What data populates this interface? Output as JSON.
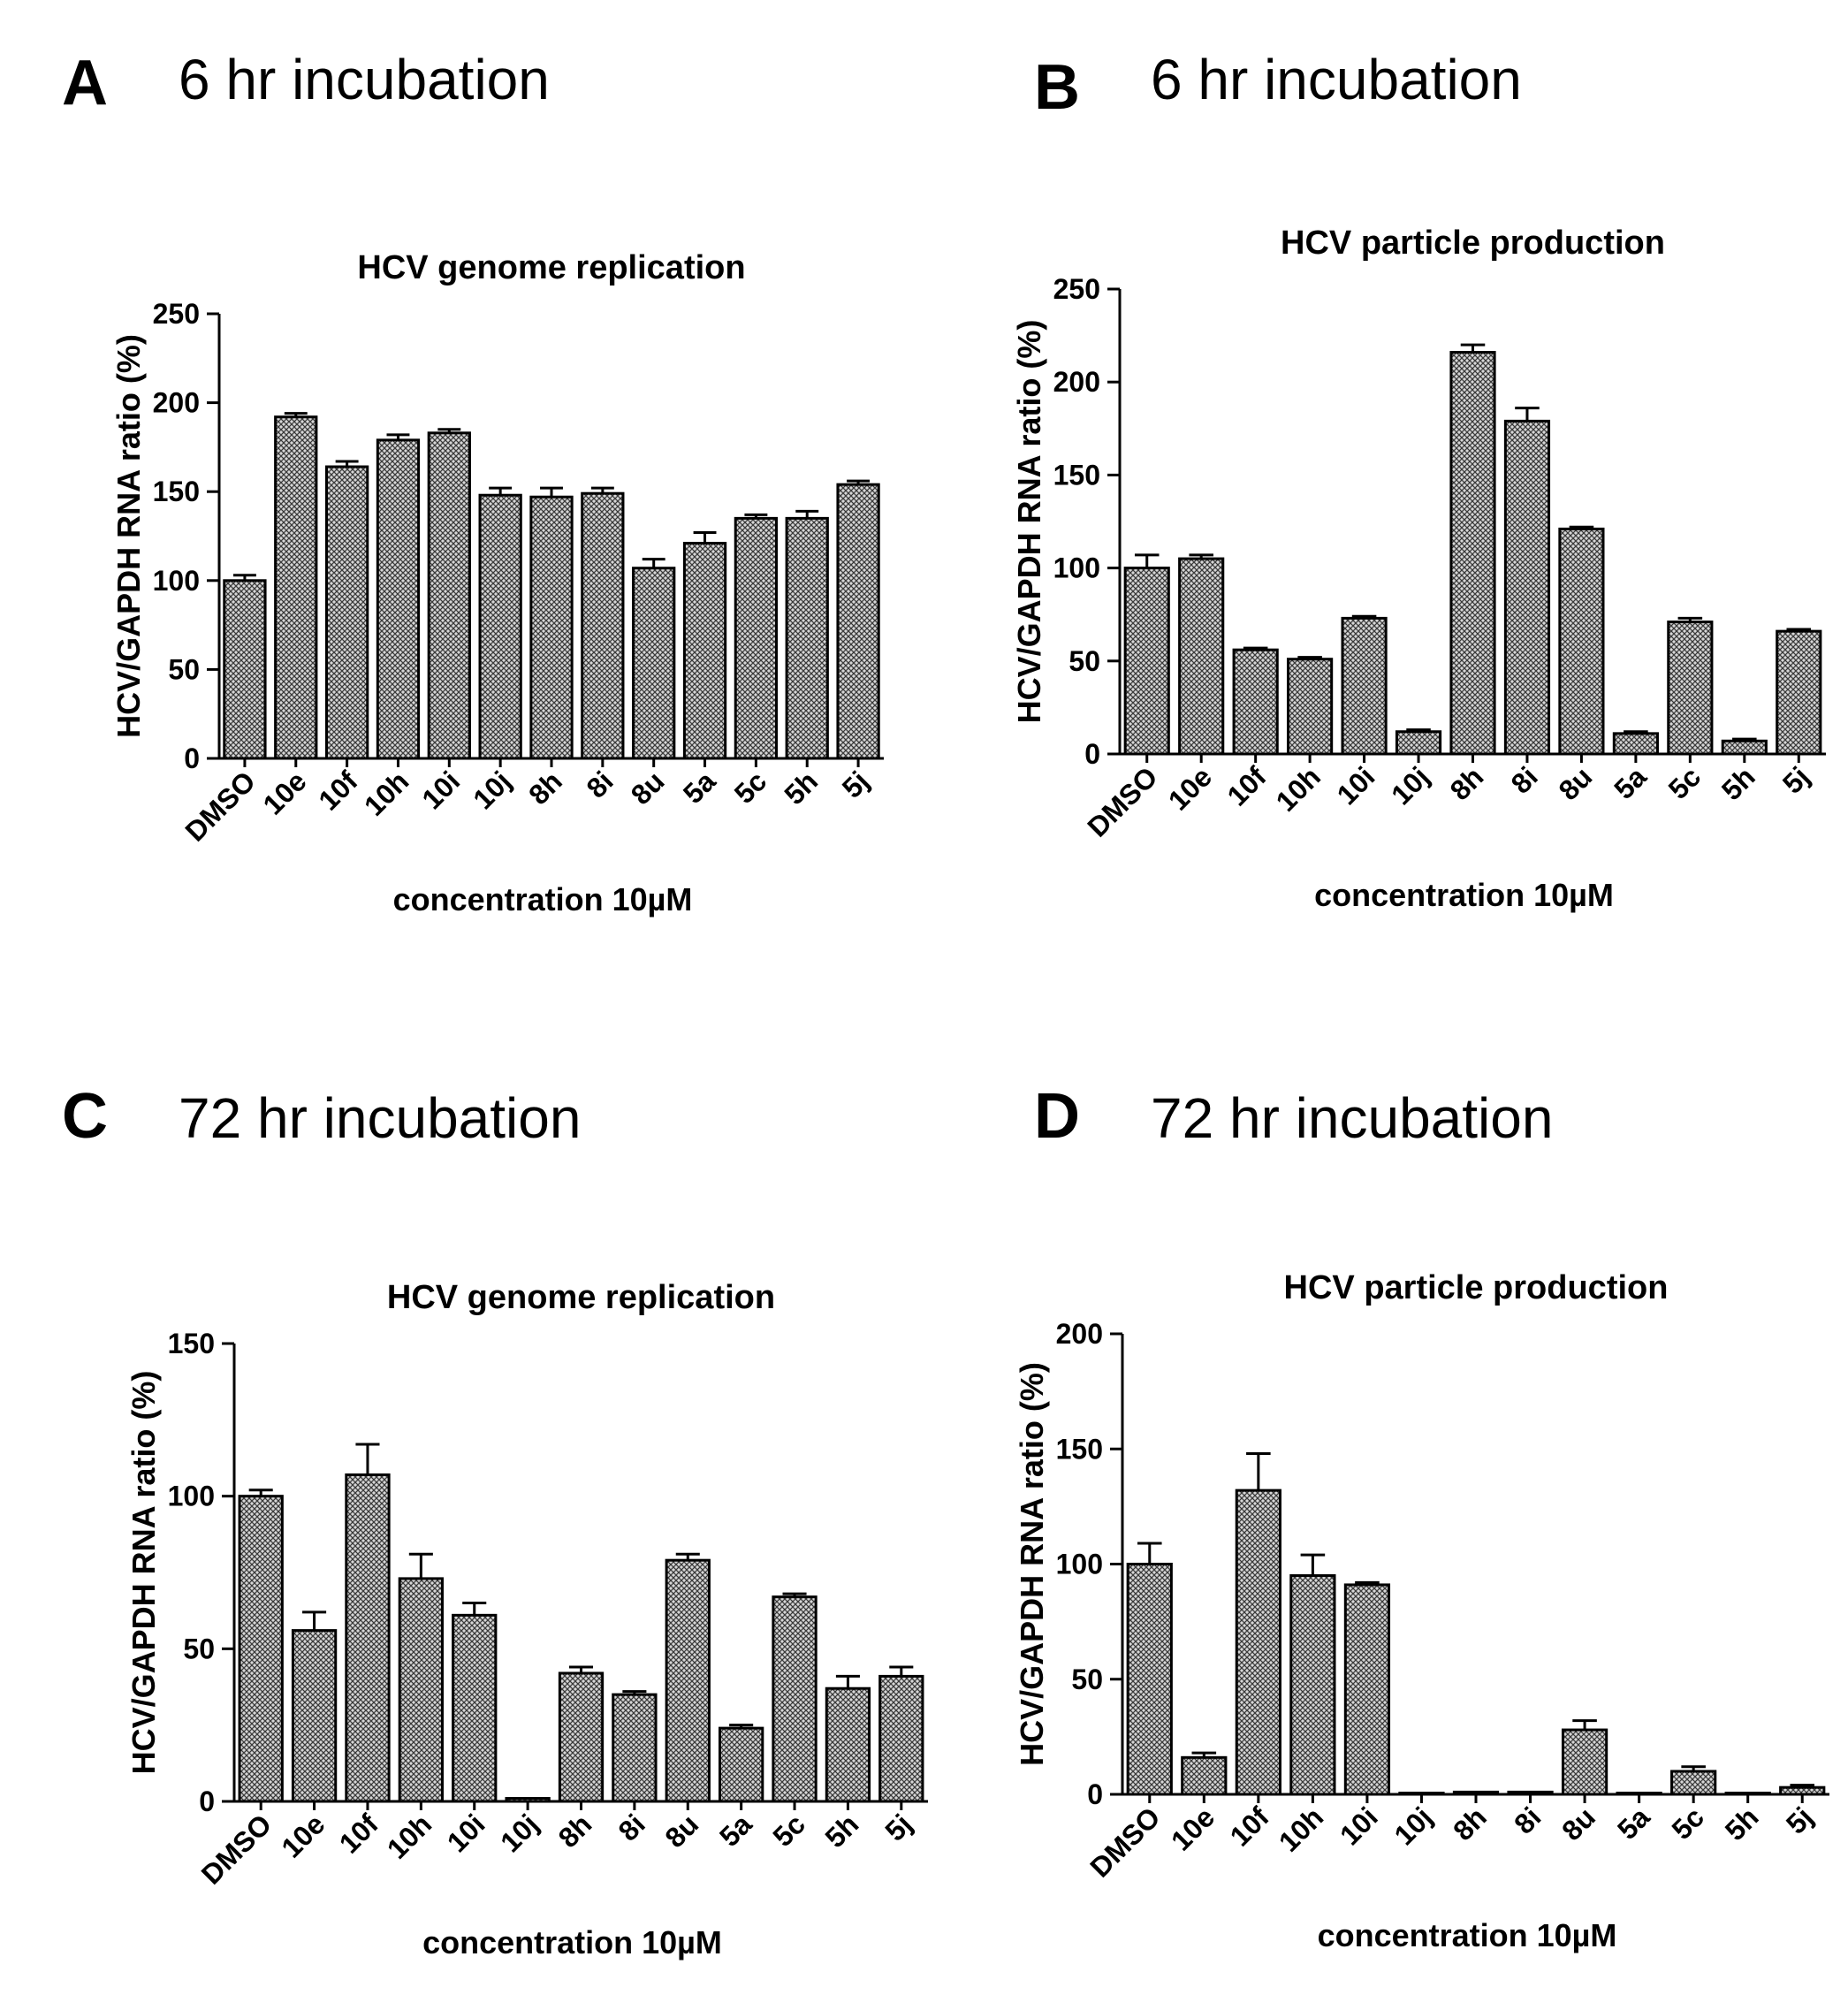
{
  "panels": [
    {
      "letter": "A",
      "heading": "6 hr incubation",
      "chart_data": {
        "type": "bar",
        "title": "HCV genome replication",
        "xlabel": "concentration 10µM",
        "ylabel": "HCV/GAPDH RNA ratio (%)",
        "categories": [
          "DMSO",
          "10e",
          "10f",
          "10h",
          "10i",
          "10j",
          "8h",
          "8i",
          "8u",
          "5a",
          "5c",
          "5h",
          "5j"
        ],
        "values": [
          100,
          192,
          164,
          179,
          183,
          148,
          147,
          149,
          107,
          121,
          135,
          135,
          154
        ],
        "errors": [
          3,
          2,
          3,
          3,
          2,
          4,
          5,
          3,
          5,
          6,
          2,
          4,
          2
        ],
        "ylim": [
          0,
          250
        ],
        "yticks": [
          0,
          50,
          100,
          150,
          200,
          250
        ]
      }
    },
    {
      "letter": "B",
      "heading": "6 hr incubation",
      "chart_data": {
        "type": "bar",
        "title": "HCV particle production",
        "xlabel": "concentration 10µM",
        "ylabel": "HCV/GAPDH RNA ratio (%)",
        "categories": [
          "DMSO",
          "10e",
          "10f",
          "10h",
          "10i",
          "10j",
          "8h",
          "8i",
          "8u",
          "5a",
          "5c",
          "5h",
          "5j"
        ],
        "values": [
          100,
          105,
          56,
          51,
          73,
          12,
          216,
          179,
          121,
          11,
          71,
          7,
          66
        ],
        "errors": [
          7,
          2,
          1,
          1,
          1,
          1,
          4,
          7,
          1,
          1,
          2,
          1,
          1
        ],
        "ylim": [
          0,
          250
        ],
        "yticks": [
          0,
          50,
          100,
          150,
          200,
          250
        ]
      }
    },
    {
      "letter": "C",
      "heading": "72 hr incubation",
      "chart_data": {
        "type": "bar",
        "title": "HCV genome replication",
        "xlabel": "concentration 10µM",
        "ylabel": "HCV/GAPDH RNA ratio (%)",
        "categories": [
          "DMSO",
          "10e",
          "10f",
          "10h",
          "10i",
          "10j",
          "8h",
          "8i",
          "8u",
          "5a",
          "5c",
          "5h",
          "5j"
        ],
        "values": [
          100,
          56,
          107,
          73,
          61,
          1,
          42,
          35,
          79,
          24,
          67,
          37,
          41
        ],
        "errors": [
          2,
          6,
          10,
          8,
          4,
          0,
          2,
          1,
          2,
          1,
          1,
          4,
          3
        ],
        "ylim": [
          0,
          150
        ],
        "yticks": [
          0,
          50,
          100,
          150
        ]
      }
    },
    {
      "letter": "D",
      "heading": "72 hr incubation",
      "chart_data": {
        "type": "bar",
        "title": "HCV particle production",
        "xlabel": "concentration 10µM",
        "ylabel": "HCV/GAPDH RNA ratio (%)",
        "categories": [
          "DMSO",
          "10e",
          "10f",
          "10h",
          "10i",
          "10j",
          "8h",
          "8i",
          "8u",
          "5a",
          "5c",
          "5h",
          "5j"
        ],
        "values": [
          100,
          16,
          132,
          95,
          91,
          0,
          1,
          1,
          28,
          0,
          10,
          0,
          3
        ],
        "errors": [
          9,
          2,
          16,
          9,
          1,
          0,
          0,
          0,
          4,
          0,
          2,
          0,
          1
        ],
        "ylim": [
          0,
          200
        ],
        "yticks": [
          0,
          50,
          100,
          150,
          200
        ]
      }
    }
  ]
}
